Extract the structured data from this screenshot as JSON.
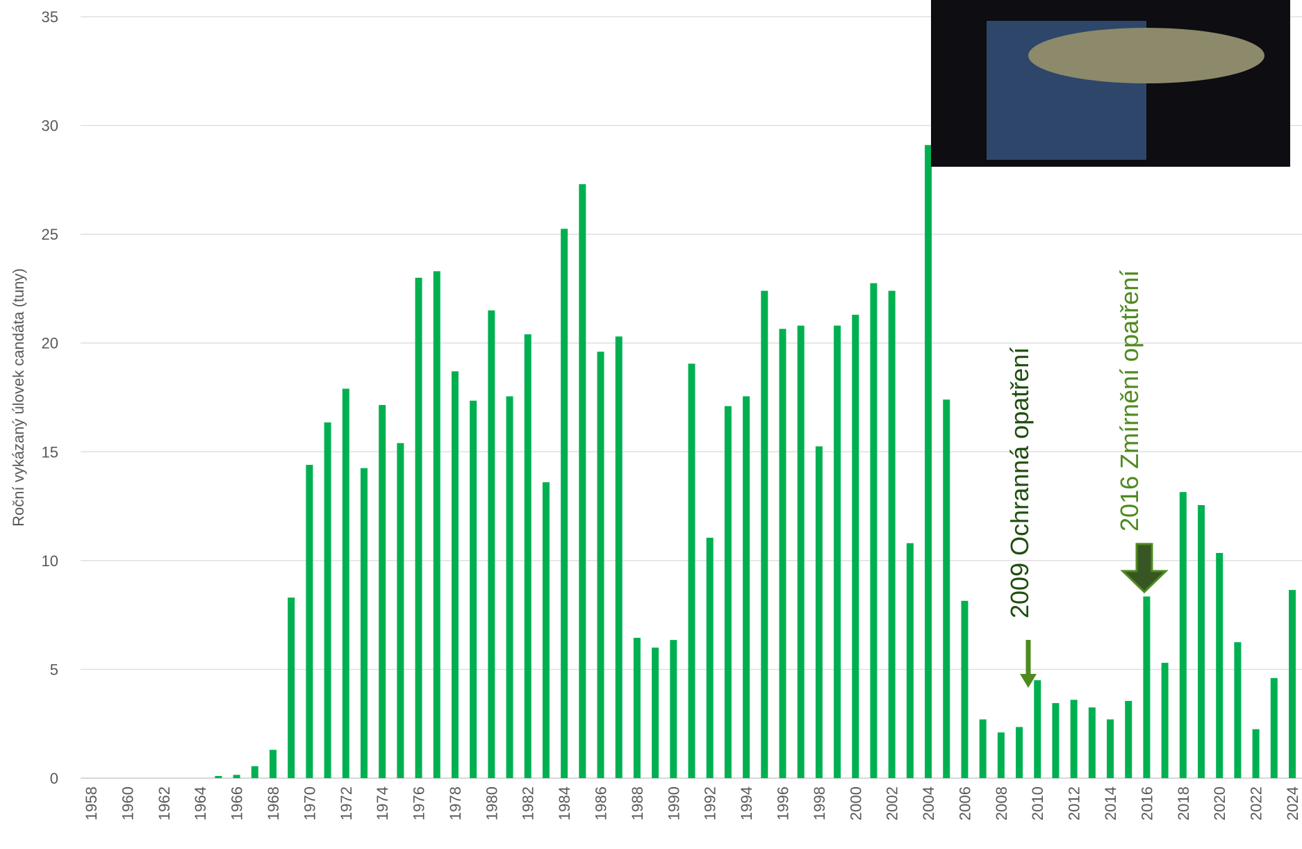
{
  "chart_data": {
    "type": "bar",
    "y_label": "Roční vykázaný úlovek candáta (tuny)",
    "categories": [
      "1958",
      null,
      "1960",
      null,
      "1962",
      null,
      "1964",
      null,
      "1966",
      null,
      "1968",
      null,
      "1970",
      null,
      "1972",
      null,
      "1974",
      null,
      "1976",
      null,
      "1978",
      null,
      "1980",
      null,
      "1982",
      null,
      "1984",
      null,
      "1986",
      null,
      "1988",
      null,
      "1990",
      null,
      "1992",
      null,
      "1994",
      null,
      "1996",
      null,
      "1998",
      null,
      "2000",
      null,
      "2002",
      null,
      "2004",
      null,
      "2006",
      null,
      "2008",
      null,
      "2010",
      null,
      "2012",
      null,
      "2014",
      null,
      "2016",
      null,
      "2018",
      null,
      "2020",
      null,
      "2022",
      null,
      "2024"
    ],
    "values": [
      0,
      0,
      0,
      0,
      0,
      0,
      0,
      0.1,
      0.15,
      0.55,
      1.3,
      8.3,
      14.4,
      16.35,
      17.9,
      14.25,
      17.15,
      15.4,
      23.0,
      23.3,
      18.7,
      17.35,
      21.5,
      17.55,
      20.4,
      13.6,
      25.25,
      27.3,
      19.6,
      20.3,
      6.45,
      6.0,
      6.35,
      19.05,
      11.05,
      17.1,
      17.55,
      22.4,
      20.65,
      20.8,
      15.25,
      20.8,
      21.3,
      22.75,
      22.4,
      10.8,
      29.1,
      17.4,
      8.15,
      2.7,
      2.1,
      2.35,
      4.5,
      3.45,
      3.6,
      3.25,
      2.7,
      3.55,
      8.35,
      5.3,
      13.15,
      12.55,
      10.35,
      6.25,
      2.25,
      4.6,
      8.65
    ],
    "color": "#00b050",
    "ylim": [
      0,
      35
    ],
    "yticks": [
      0,
      5,
      10,
      15,
      20,
      25,
      30,
      35
    ],
    "grid": true,
    "annotations": [
      {
        "text": "2009 Ochranná opatření",
        "color": "#1f4e0f"
      },
      {
        "text": "2016 Zmírnění opatření",
        "color": "#4f8a1f"
      }
    ]
  }
}
